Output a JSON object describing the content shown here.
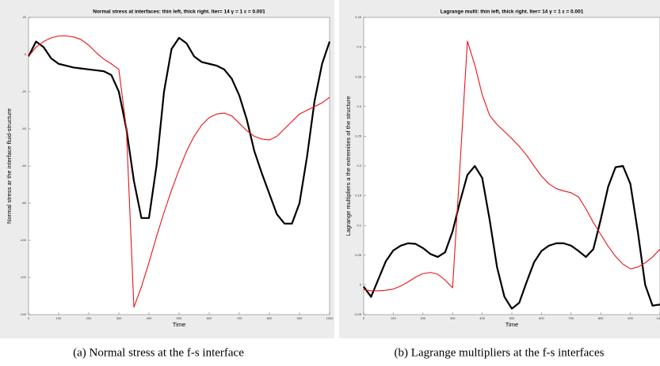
{
  "chart_data": [
    {
      "type": "line",
      "title": "Normal stress at interfaces: thin left, thick right. Iter= 14 γ = 1 ε = 0.001",
      "xlabel": "Time",
      "ylabel": "Normal stress ar the interface fluid-structure",
      "caption": "(a) Normal stress at the f-s interface",
      "x": [
        0,
        25,
        50,
        75,
        100,
        125,
        150,
        175,
        200,
        225,
        250,
        275,
        300,
        325,
        350,
        375,
        400,
        425,
        450,
        475,
        500,
        525,
        550,
        575,
        600,
        625,
        650,
        675,
        700,
        725,
        750,
        775,
        800,
        825,
        850,
        875,
        900,
        925,
        950,
        975,
        1000
      ],
      "xlim": [
        0,
        1000
      ],
      "xticks": [
        0,
        100,
        200,
        300,
        400,
        500,
        600,
        700,
        800,
        900,
        1000
      ],
      "ylim": [
        -140,
        20
      ],
      "yticks": [
        20,
        0,
        -20,
        -40,
        -60,
        -80,
        -100,
        -120,
        -140
      ],
      "series": [
        {
          "name": "thick",
          "color": "#000000",
          "width": 2.2,
          "values": [
            -1,
            7,
            4,
            -2,
            -5,
            -6,
            -7,
            -7.5,
            -8,
            -8.5,
            -9,
            -11,
            -20,
            -40,
            -68,
            -88,
            -88,
            -60,
            -20,
            3,
            9,
            6,
            -1,
            -4,
            -5,
            -6,
            -8,
            -13,
            -22,
            -35,
            -52,
            -64,
            -75,
            -86,
            -91,
            -91,
            -80,
            -55,
            -25,
            -5,
            7
          ]
        },
        {
          "name": "thin",
          "color": "#e8141b",
          "width": 1.1,
          "values": [
            -1,
            4,
            7,
            9,
            10,
            10,
            9.5,
            8,
            5,
            1,
            -2.5,
            -5,
            -8,
            -40,
            -136,
            -125,
            -112,
            -98,
            -85,
            -73,
            -62,
            -52,
            -44,
            -38,
            -34,
            -32,
            -31.5,
            -33,
            -37,
            -41,
            -44,
            -45.5,
            -46,
            -44,
            -40,
            -36,
            -32,
            -30,
            -28,
            -26,
            -23
          ]
        }
      ]
    },
    {
      "type": "line",
      "title": "Lagrange multi: thin left, thick right. Iter= 14 γ = 1 ε = 0.001",
      "xlabel": "Time",
      "ylabel": "Lagrange multipliers a the extremities of the structure",
      "caption": "(b) Lagrange multipliers at the f-s interfaces",
      "x": [
        0,
        25,
        50,
        75,
        100,
        125,
        150,
        175,
        200,
        225,
        250,
        275,
        300,
        325,
        350,
        375,
        400,
        425,
        450,
        475,
        500,
        525,
        550,
        575,
        600,
        625,
        650,
        675,
        700,
        725,
        750,
        775,
        800,
        825,
        850,
        875,
        900,
        925,
        950,
        975,
        1000
      ],
      "xlim": [
        0,
        1000
      ],
      "xticks": [
        0,
        100,
        200,
        300,
        400,
        500,
        600,
        700,
        800,
        900,
        1000
      ],
      "ylim": [
        -0.05,
        0.45
      ],
      "yticks": [
        0.45,
        0.4,
        0.35,
        0.3,
        0.25,
        0.2,
        0.15,
        0.1,
        0.05,
        0,
        -0.05
      ],
      "series": [
        {
          "name": "thick",
          "color": "#000000",
          "width": 2.2,
          "values": [
            -0.003,
            -0.02,
            0.01,
            0.04,
            0.058,
            0.066,
            0.07,
            0.069,
            0.062,
            0.052,
            0.047,
            0.055,
            0.09,
            0.14,
            0.185,
            0.2,
            0.18,
            0.11,
            0.03,
            -0.02,
            -0.04,
            -0.03,
            0.005,
            0.038,
            0.057,
            0.066,
            0.07,
            0.07,
            0.066,
            0.057,
            0.047,
            0.06,
            0.11,
            0.165,
            0.198,
            0.2,
            0.17,
            0.09,
            0,
            -0.035,
            -0.033
          ]
        },
        {
          "name": "thin",
          "color": "#e8141b",
          "width": 1.1,
          "values": [
            -0.008,
            -0.01,
            -0.01,
            -0.009,
            -0.007,
            -0.002,
            0.005,
            0.013,
            0.019,
            0.021,
            0.018,
            0.008,
            -0.005,
            0.2,
            0.41,
            0.37,
            0.32,
            0.285,
            0.27,
            0.258,
            0.246,
            0.233,
            0.218,
            0.2,
            0.183,
            0.17,
            0.162,
            0.158,
            0.155,
            0.148,
            0.128,
            0.105,
            0.085,
            0.065,
            0.048,
            0.035,
            0.027,
            0.03,
            0.037,
            0.047,
            0.06
          ]
        }
      ]
    }
  ]
}
